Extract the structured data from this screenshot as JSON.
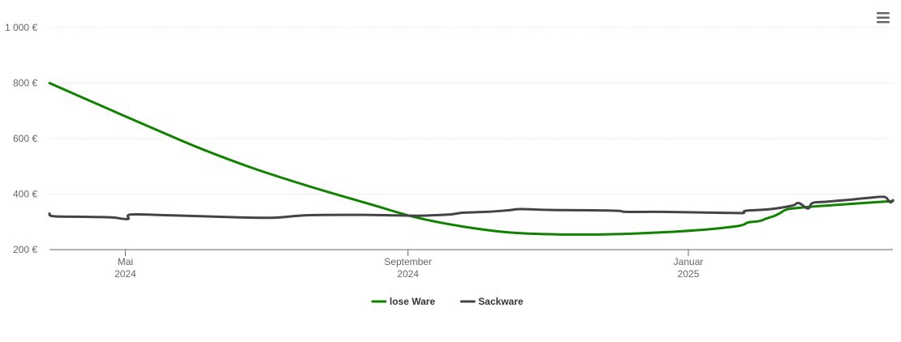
{
  "chart_data": {
    "type": "line",
    "title": "",
    "xlabel": "",
    "ylabel": "",
    "x_axis_type": "datetime",
    "xlim": [
      "2024-03-29",
      "2025-03-31"
    ],
    "ylim": [
      200,
      1000
    ],
    "yticks": [
      200,
      400,
      600,
      800,
      1000
    ],
    "ytick_labels": [
      "200 €",
      "400 €",
      "600 €",
      "800 €",
      "1 000 €"
    ],
    "xticks": [
      {
        "date": "2024-05-01",
        "label": "Mai",
        "sublabel": "2024"
      },
      {
        "date": "2024-09-01",
        "label": "September",
        "sublabel": "2024"
      },
      {
        "date": "2025-01-01",
        "label": "Januar",
        "sublabel": "2025"
      }
    ],
    "grid": true,
    "legend_position": "bottom-center",
    "series": [
      {
        "name": "lose Ware",
        "color": "#118100",
        "points": [
          [
            "2024-03-29",
            800
          ],
          [
            "2024-04-20",
            720
          ],
          [
            "2024-05-10",
            648
          ],
          [
            "2024-06-01",
            570
          ],
          [
            "2024-06-25",
            495
          ],
          [
            "2024-07-20",
            428
          ],
          [
            "2024-08-15",
            365
          ],
          [
            "2024-09-05",
            315
          ],
          [
            "2024-09-25",
            283
          ],
          [
            "2024-10-15",
            262
          ],
          [
            "2024-11-05",
            255
          ],
          [
            "2024-11-25",
            255
          ],
          [
            "2024-12-15",
            260
          ],
          [
            "2025-01-05",
            270
          ],
          [
            "2025-01-20",
            282
          ],
          [
            "2025-01-25",
            290
          ],
          [
            "2025-01-27",
            298
          ],
          [
            "2025-02-01",
            303
          ],
          [
            "2025-02-04",
            312
          ],
          [
            "2025-02-07",
            320
          ],
          [
            "2025-02-10",
            332
          ],
          [
            "2025-02-13",
            345
          ],
          [
            "2025-02-20",
            352
          ],
          [
            "2025-03-01",
            358
          ],
          [
            "2025-03-15",
            366
          ],
          [
            "2025-03-31",
            375
          ]
        ]
      },
      {
        "name": "Sackware",
        "color": "#434348",
        "points": [
          [
            "2024-03-29",
            330
          ],
          [
            "2024-03-31",
            320
          ],
          [
            "2024-04-15",
            318
          ],
          [
            "2024-04-25",
            316
          ],
          [
            "2024-05-02",
            310
          ],
          [
            "2024-05-03",
            326
          ],
          [
            "2024-05-15",
            325
          ],
          [
            "2024-06-01",
            321
          ],
          [
            "2024-06-20",
            316
          ],
          [
            "2024-07-05",
            315
          ],
          [
            "2024-07-20",
            324
          ],
          [
            "2024-08-15",
            325
          ],
          [
            "2024-09-05",
            322
          ],
          [
            "2024-09-15",
            325
          ],
          [
            "2024-09-20",
            327
          ],
          [
            "2024-09-25",
            333
          ],
          [
            "2024-10-05",
            336
          ],
          [
            "2024-10-15",
            342
          ],
          [
            "2024-10-20",
            346
          ],
          [
            "2024-11-01",
            343
          ],
          [
            "2024-11-15",
            342
          ],
          [
            "2024-12-01",
            340
          ],
          [
            "2024-12-05",
            336
          ],
          [
            "2024-12-20",
            336
          ],
          [
            "2025-01-20",
            332
          ],
          [
            "2025-01-25",
            332
          ],
          [
            "2025-01-26",
            340
          ],
          [
            "2025-02-05",
            345
          ],
          [
            "2025-02-15",
            358
          ],
          [
            "2025-02-18",
            368
          ],
          [
            "2025-02-22",
            348
          ],
          [
            "2025-02-24",
            368
          ],
          [
            "2025-03-01",
            372
          ],
          [
            "2025-03-10",
            378
          ],
          [
            "2025-03-20",
            386
          ],
          [
            "2025-03-27",
            390
          ],
          [
            "2025-03-29",
            378
          ],
          [
            "2025-03-30",
            370
          ],
          [
            "2025-03-31",
            378
          ]
        ]
      }
    ]
  },
  "toolbar": {
    "menu_icon": "hamburger-menu-icon"
  }
}
